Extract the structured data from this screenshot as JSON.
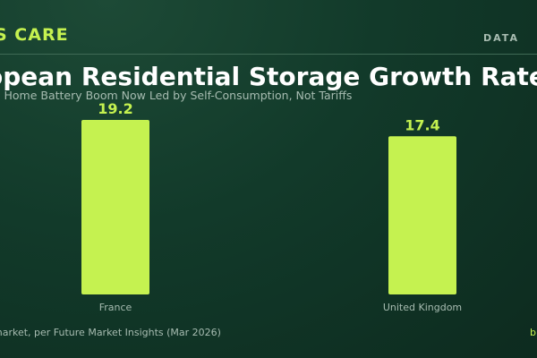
{
  "header": {
    "brand": "S CARE",
    "section": "DATA"
  },
  "footer": {
    "source": "market, per Future Market Insights (Mar 2026)",
    "brand_fragment": "b"
  },
  "colors": {
    "bar": "#c5f250",
    "value_label": "#c5f250",
    "background": "#123a2a"
  },
  "chart_data": {
    "type": "bar",
    "title": "opean Residential Storage Growth Rates",
    "subtitle": "s Home Battery Boom Now Led by Self-Consumption, Not Tariffs",
    "categories": [
      "France",
      "United Kingdom"
    ],
    "values": [
      19.2,
      17.4
    ],
    "value_labels": [
      "19.2",
      "17.4"
    ],
    "ylim": [
      0,
      19.2
    ],
    "grid": false,
    "legend": "none"
  }
}
